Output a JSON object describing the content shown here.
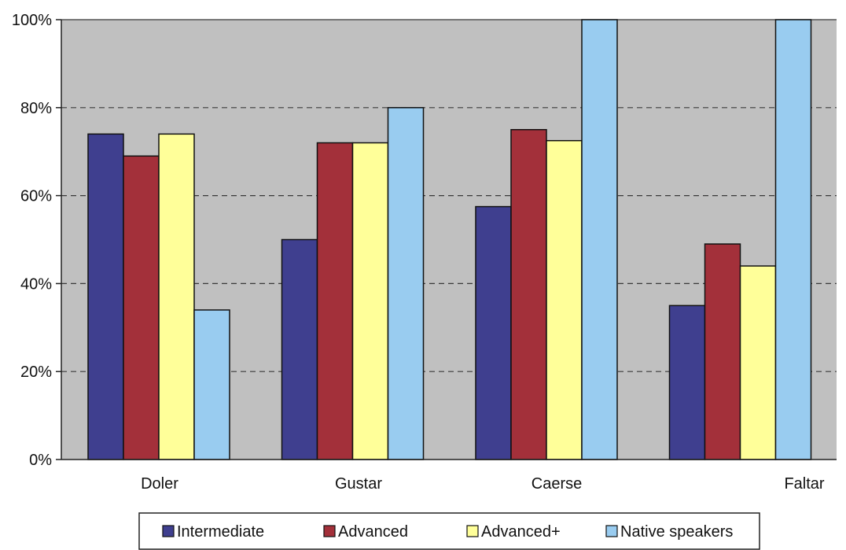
{
  "chart_data": {
    "type": "bar",
    "categories": [
      "Doler",
      "Gustar",
      "Caerse",
      "Faltar"
    ],
    "series": [
      {
        "name": "Intermediate",
        "color": "#3f3f8f",
        "values": [
          74,
          50,
          57.5,
          35
        ]
      },
      {
        "name": "Advanced",
        "color": "#a3303a",
        "values": [
          69,
          72,
          75,
          49
        ]
      },
      {
        "name": "Advanced+",
        "color": "#ffff99",
        "values": [
          74,
          72,
          72.5,
          44
        ]
      },
      {
        "name": "Native speakers",
        "color": "#99ccf0",
        "values": [
          34,
          80,
          100,
          100
        ]
      }
    ],
    "y_ticks": [
      "0%",
      "20%",
      "40%",
      "60%",
      "80%",
      "100%"
    ],
    "ylim": [
      0,
      100
    ],
    "grid": true,
    "legend_position": "bottom",
    "plot_background": "#c0c0c0"
  }
}
